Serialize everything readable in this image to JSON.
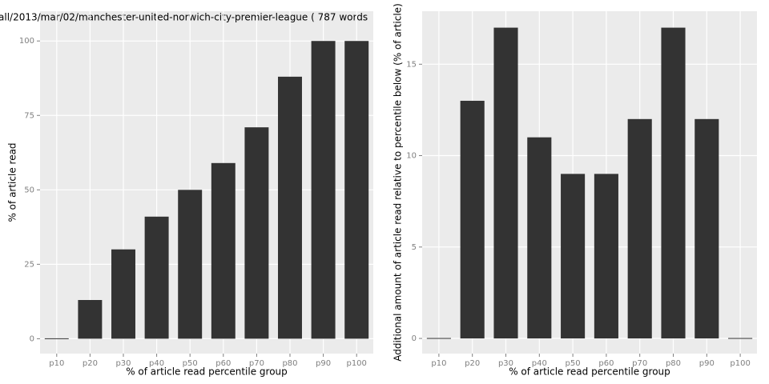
{
  "chart_data": [
    {
      "type": "bar",
      "title": "all/2013/mar/02/manchester-united-norwich-city-premier-league ( 787 words",
      "x_label": "% of article read percentile group",
      "y_label": "% of article read",
      "categories": [
        "p10",
        "p20",
        "p30",
        "p40",
        "p50",
        "p60",
        "p70",
        "p80",
        "p90",
        "p100"
      ],
      "values": [
        0,
        13,
        30,
        41,
        50,
        59,
        71,
        88,
        100,
        100
      ],
      "color": "#333333",
      "ylim": [
        -5,
        110
      ],
      "yticks": [
        0,
        25,
        50,
        75,
        100
      ],
      "grid": true
    },
    {
      "type": "bar",
      "x_label": "% of article read percentile group",
      "y_label": "Additional amount of article read relative to percentile below (% of article)",
      "categories": [
        "p10",
        "p20",
        "p30",
        "p40",
        "p50",
        "p60",
        "p70",
        "p80",
        "p90",
        "p100"
      ],
      "values": [
        0,
        13,
        17,
        11,
        9,
        9,
        12,
        17,
        12,
        0
      ],
      "color": "#333333",
      "ylim": [
        -0.83,
        17.9
      ],
      "yticks": [
        0,
        5,
        10,
        15
      ],
      "grid": true
    }
  ]
}
